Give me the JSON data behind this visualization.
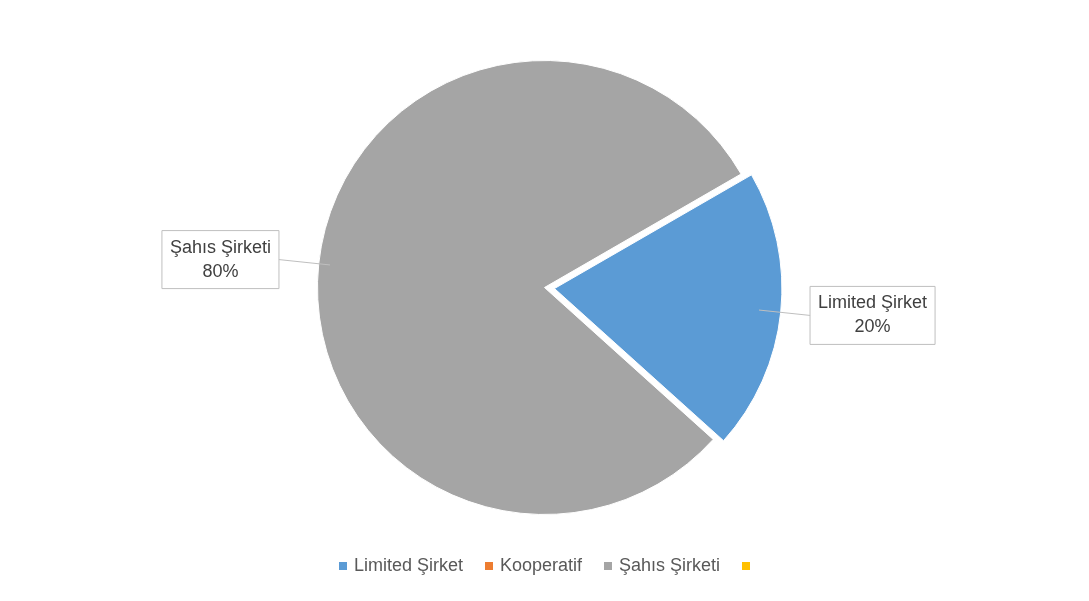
{
  "chart_data": {
    "type": "pie",
    "categories": [
      "Limited Şirket",
      "Kooperatif",
      "Şahıs Şirketi",
      null
    ],
    "values": [
      20,
      0,
      80,
      0
    ],
    "colors": [
      "#5b9bd5",
      "#ed7d31",
      "#a5a5a5",
      "#ffc000"
    ],
    "value_labels": [
      "20%",
      null,
      "80%",
      null
    ],
    "legend": "bottom"
  }
}
